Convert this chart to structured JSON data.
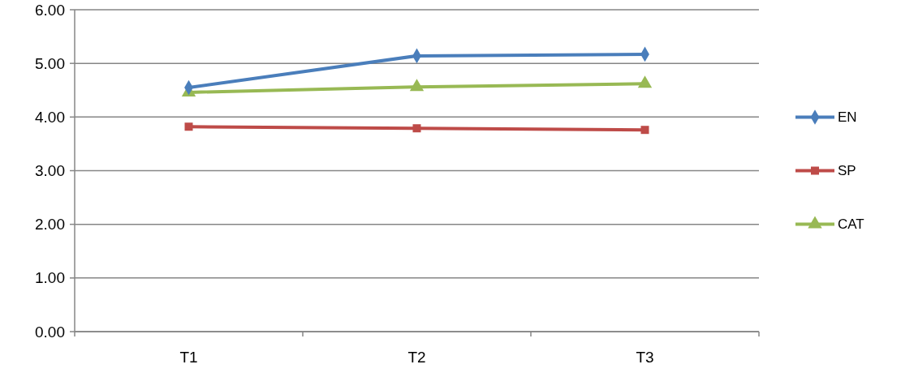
{
  "chart_data": {
    "type": "line",
    "categories": [
      "T1",
      "T2",
      "T3"
    ],
    "series": [
      {
        "name": "EN",
        "color": "#4a7ebb",
        "values": [
          4.55,
          5.14,
          5.17
        ],
        "marker": "diamond"
      },
      {
        "name": "SP",
        "color": "#be4b48",
        "values": [
          3.82,
          3.79,
          3.76
        ],
        "marker": "square"
      },
      {
        "name": "CAT",
        "color": "#98b954",
        "values": [
          4.46,
          4.56,
          4.62
        ],
        "marker": "triangle"
      }
    ],
    "ylim": [
      0,
      6
    ],
    "yticks": [
      {
        "value": 0,
        "label": "0.00"
      },
      {
        "value": 1,
        "label": "1.00"
      },
      {
        "value": 2,
        "label": "2.00"
      },
      {
        "value": 3,
        "label": "3.00"
      },
      {
        "value": 4,
        "label": "4.00"
      },
      {
        "value": 5,
        "label": "5.00"
      },
      {
        "value": 6,
        "label": "6.00"
      }
    ],
    "grid": "y",
    "legend": "right"
  }
}
